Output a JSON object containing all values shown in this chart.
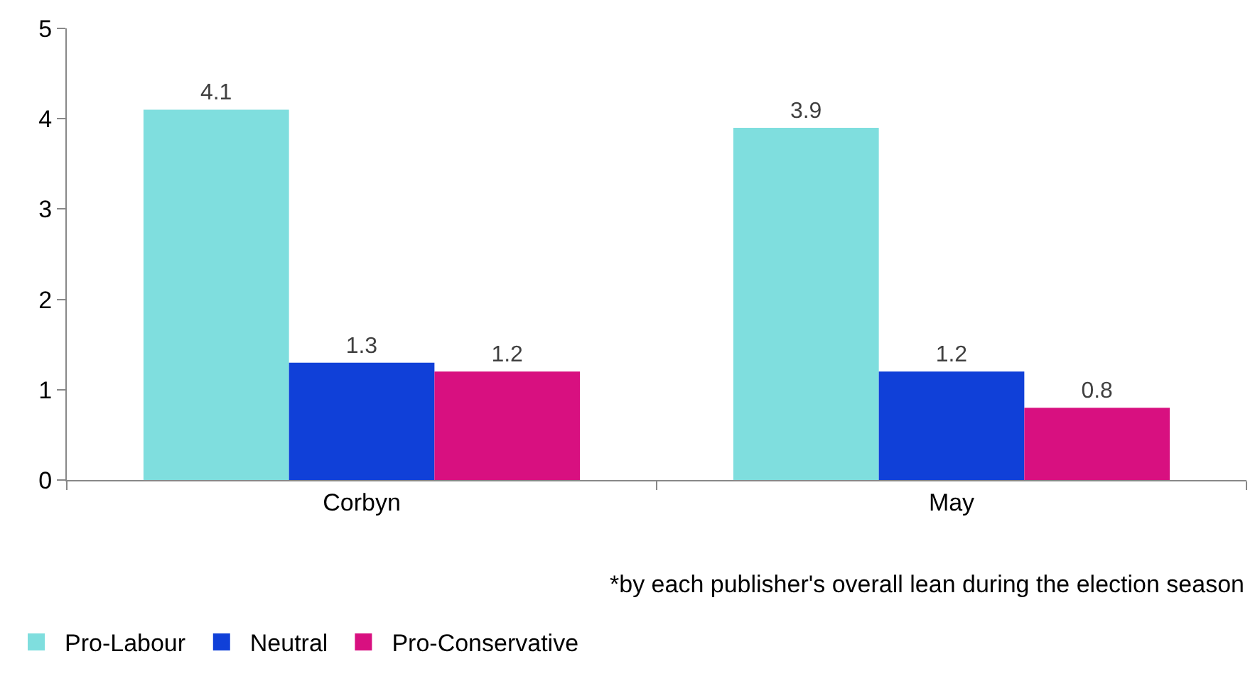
{
  "chart_data": {
    "type": "bar",
    "categories": [
      "Corbyn",
      "May"
    ],
    "series": [
      {
        "name": "Pro-Labour",
        "color": "#7fdede",
        "values": [
          4.1,
          3.9
        ]
      },
      {
        "name": "Neutral",
        "color": "#1040d8",
        "values": [
          1.3,
          1.2
        ]
      },
      {
        "name": "Pro-Conservative",
        "color": "#d81080",
        "values": [
          1.2,
          0.8
        ]
      }
    ],
    "ylim": [
      0,
      5
    ],
    "yticks": [
      0,
      1,
      2,
      3,
      4,
      5
    ],
    "grid": false,
    "legend": "bottom left",
    "data_labels": true,
    "annotations": [
      "*by each publisher's overall lean during the election season"
    ]
  }
}
